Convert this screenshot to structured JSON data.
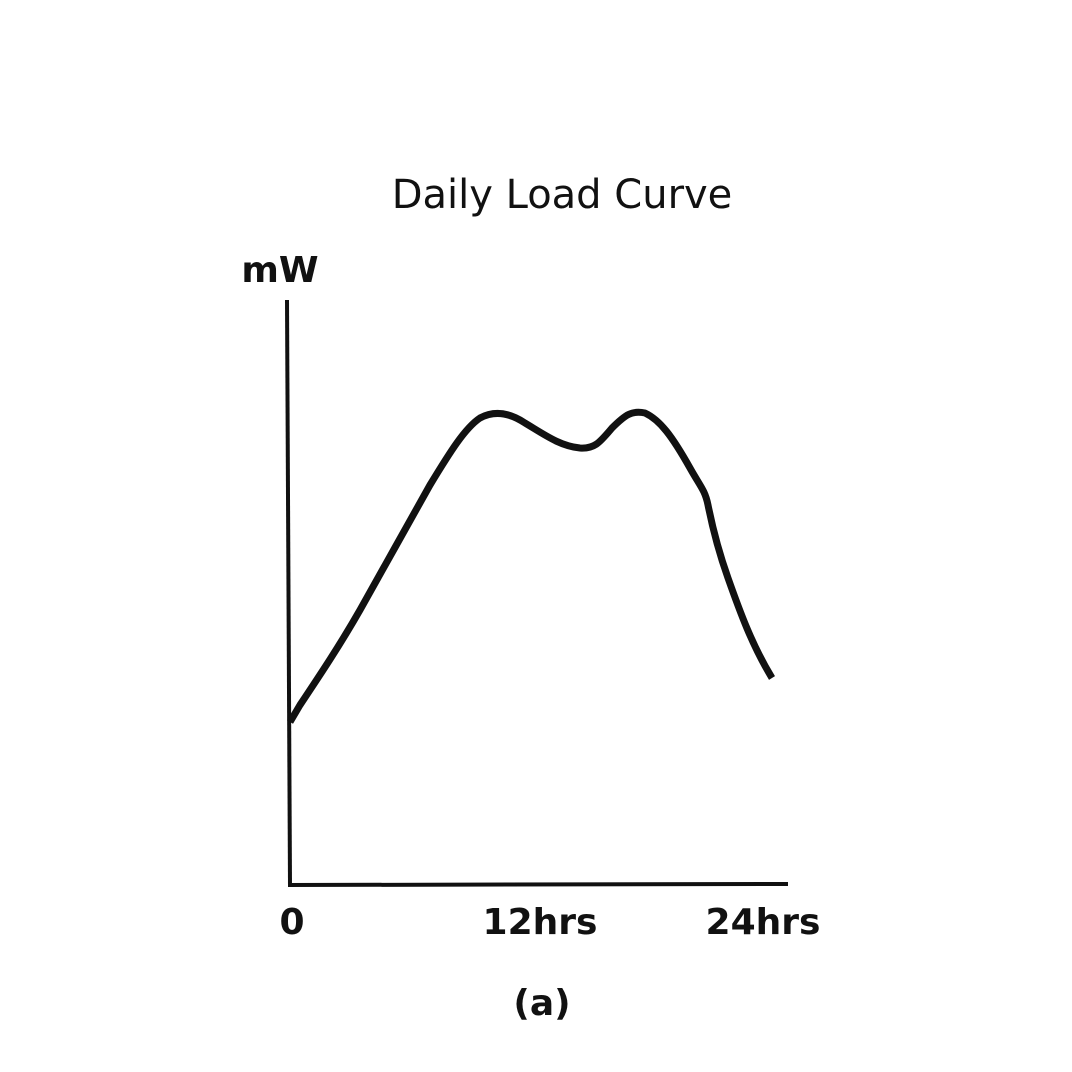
{
  "title": "Daily Load Curve",
  "y_axis_label": "mW",
  "x_labels": [
    "0",
    "12hrs",
    "24hrs"
  ],
  "caption": "(a)"
}
